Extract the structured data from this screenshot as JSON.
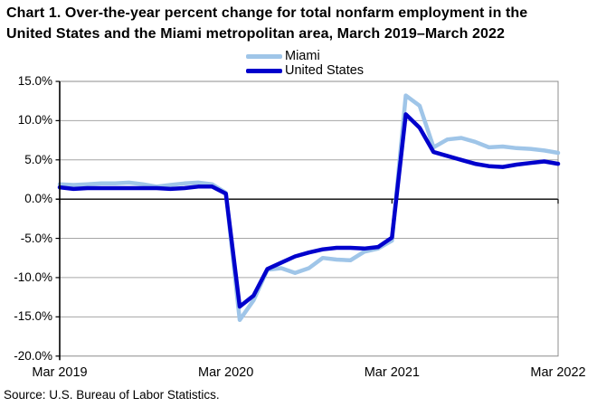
{
  "title": {
    "line1": "Chart 1. Over-the-year percent change for total nonfarm employment in the",
    "line2": "United States and the Miami metropolitan area, March 2019–March 2022"
  },
  "source": "Source: U.S. Bureau of Labor Statistics.",
  "legend": {
    "items": [
      {
        "label": "Miami",
        "color": "#9FC5E8"
      },
      {
        "label": "United States",
        "color": "#0000CC"
      }
    ]
  },
  "colors": {
    "miami_line": "#9FC5E8",
    "us_line": "#0000CC",
    "gridline": "#A6A6A6",
    "plot_border": "#8C8C8C",
    "axis": "#000000"
  },
  "chart_data": {
    "type": "line",
    "title": "Over-the-year percent change for total nonfarm employment, United States and Miami metropolitan area, March 2019 - March 2022",
    "xlabel": "",
    "ylabel": "Over-the-year percent change",
    "ylim": [
      -20,
      15
    ],
    "grid": true,
    "legend_position": "top-center",
    "x": [
      "Mar 2019",
      "Apr 2019",
      "May 2019",
      "Jun 2019",
      "Jul 2019",
      "Aug 2019",
      "Sep 2019",
      "Oct 2019",
      "Nov 2019",
      "Dec 2019",
      "Jan 2020",
      "Feb 2020",
      "Mar 2020",
      "Apr 2020",
      "May 2020",
      "Jun 2020",
      "Jul 2020",
      "Aug 2020",
      "Sep 2020",
      "Oct 2020",
      "Nov 2020",
      "Dec 2020",
      "Jan 2021",
      "Feb 2021",
      "Mar 2021",
      "Apr 2021",
      "May 2021",
      "Jun 2021",
      "Jul 2021",
      "Aug 2021",
      "Sep 2021",
      "Oct 2021",
      "Nov 2021",
      "Dec 2021",
      "Jan 2022",
      "Feb 2022",
      "Mar 2022"
    ],
    "series": [
      {
        "name": "Miami",
        "color": "#9FC5E8",
        "values": [
          1.9,
          1.8,
          1.9,
          2.0,
          2.0,
          2.1,
          1.9,
          1.6,
          1.8,
          2.0,
          2.1,
          1.9,
          0.8,
          -15.4,
          -12.9,
          -9.0,
          -8.8,
          -9.4,
          -8.8,
          -7.5,
          -7.7,
          -7.8,
          -6.7,
          -6.3,
          -5.3,
          13.2,
          11.9,
          6.6,
          7.6,
          7.8,
          7.3,
          6.6,
          6.7,
          6.5,
          6.4,
          6.2,
          5.9
        ]
      },
      {
        "name": "United States",
        "color": "#0000CC",
        "values": [
          1.5,
          1.3,
          1.4,
          1.4,
          1.4,
          1.4,
          1.4,
          1.4,
          1.3,
          1.4,
          1.6,
          1.6,
          0.7,
          -13.7,
          -12.3,
          -8.9,
          -8.1,
          -7.3,
          -6.8,
          -6.4,
          -6.2,
          -6.2,
          -6.3,
          -6.1,
          -4.9,
          10.8,
          9.1,
          6.0,
          5.5,
          5.0,
          4.5,
          4.2,
          4.1,
          4.4,
          4.6,
          4.8,
          4.5
        ]
      }
    ],
    "y_ticks": [
      "15.0%",
      "10.0%",
      "5.0%",
      "0.0%",
      "-5.0%",
      "-10.0%",
      "-15.0%",
      "-20.0%"
    ],
    "y_tick_values": [
      15,
      10,
      5,
      0,
      -5,
      -10,
      -15,
      -20
    ],
    "x_ticks": [
      {
        "label": "Mar 2019",
        "index": 0
      },
      {
        "label": "Mar 2020",
        "index": 12
      },
      {
        "label": "Mar 2021",
        "index": 24
      },
      {
        "label": "Mar 2022",
        "index": 36
      }
    ]
  }
}
